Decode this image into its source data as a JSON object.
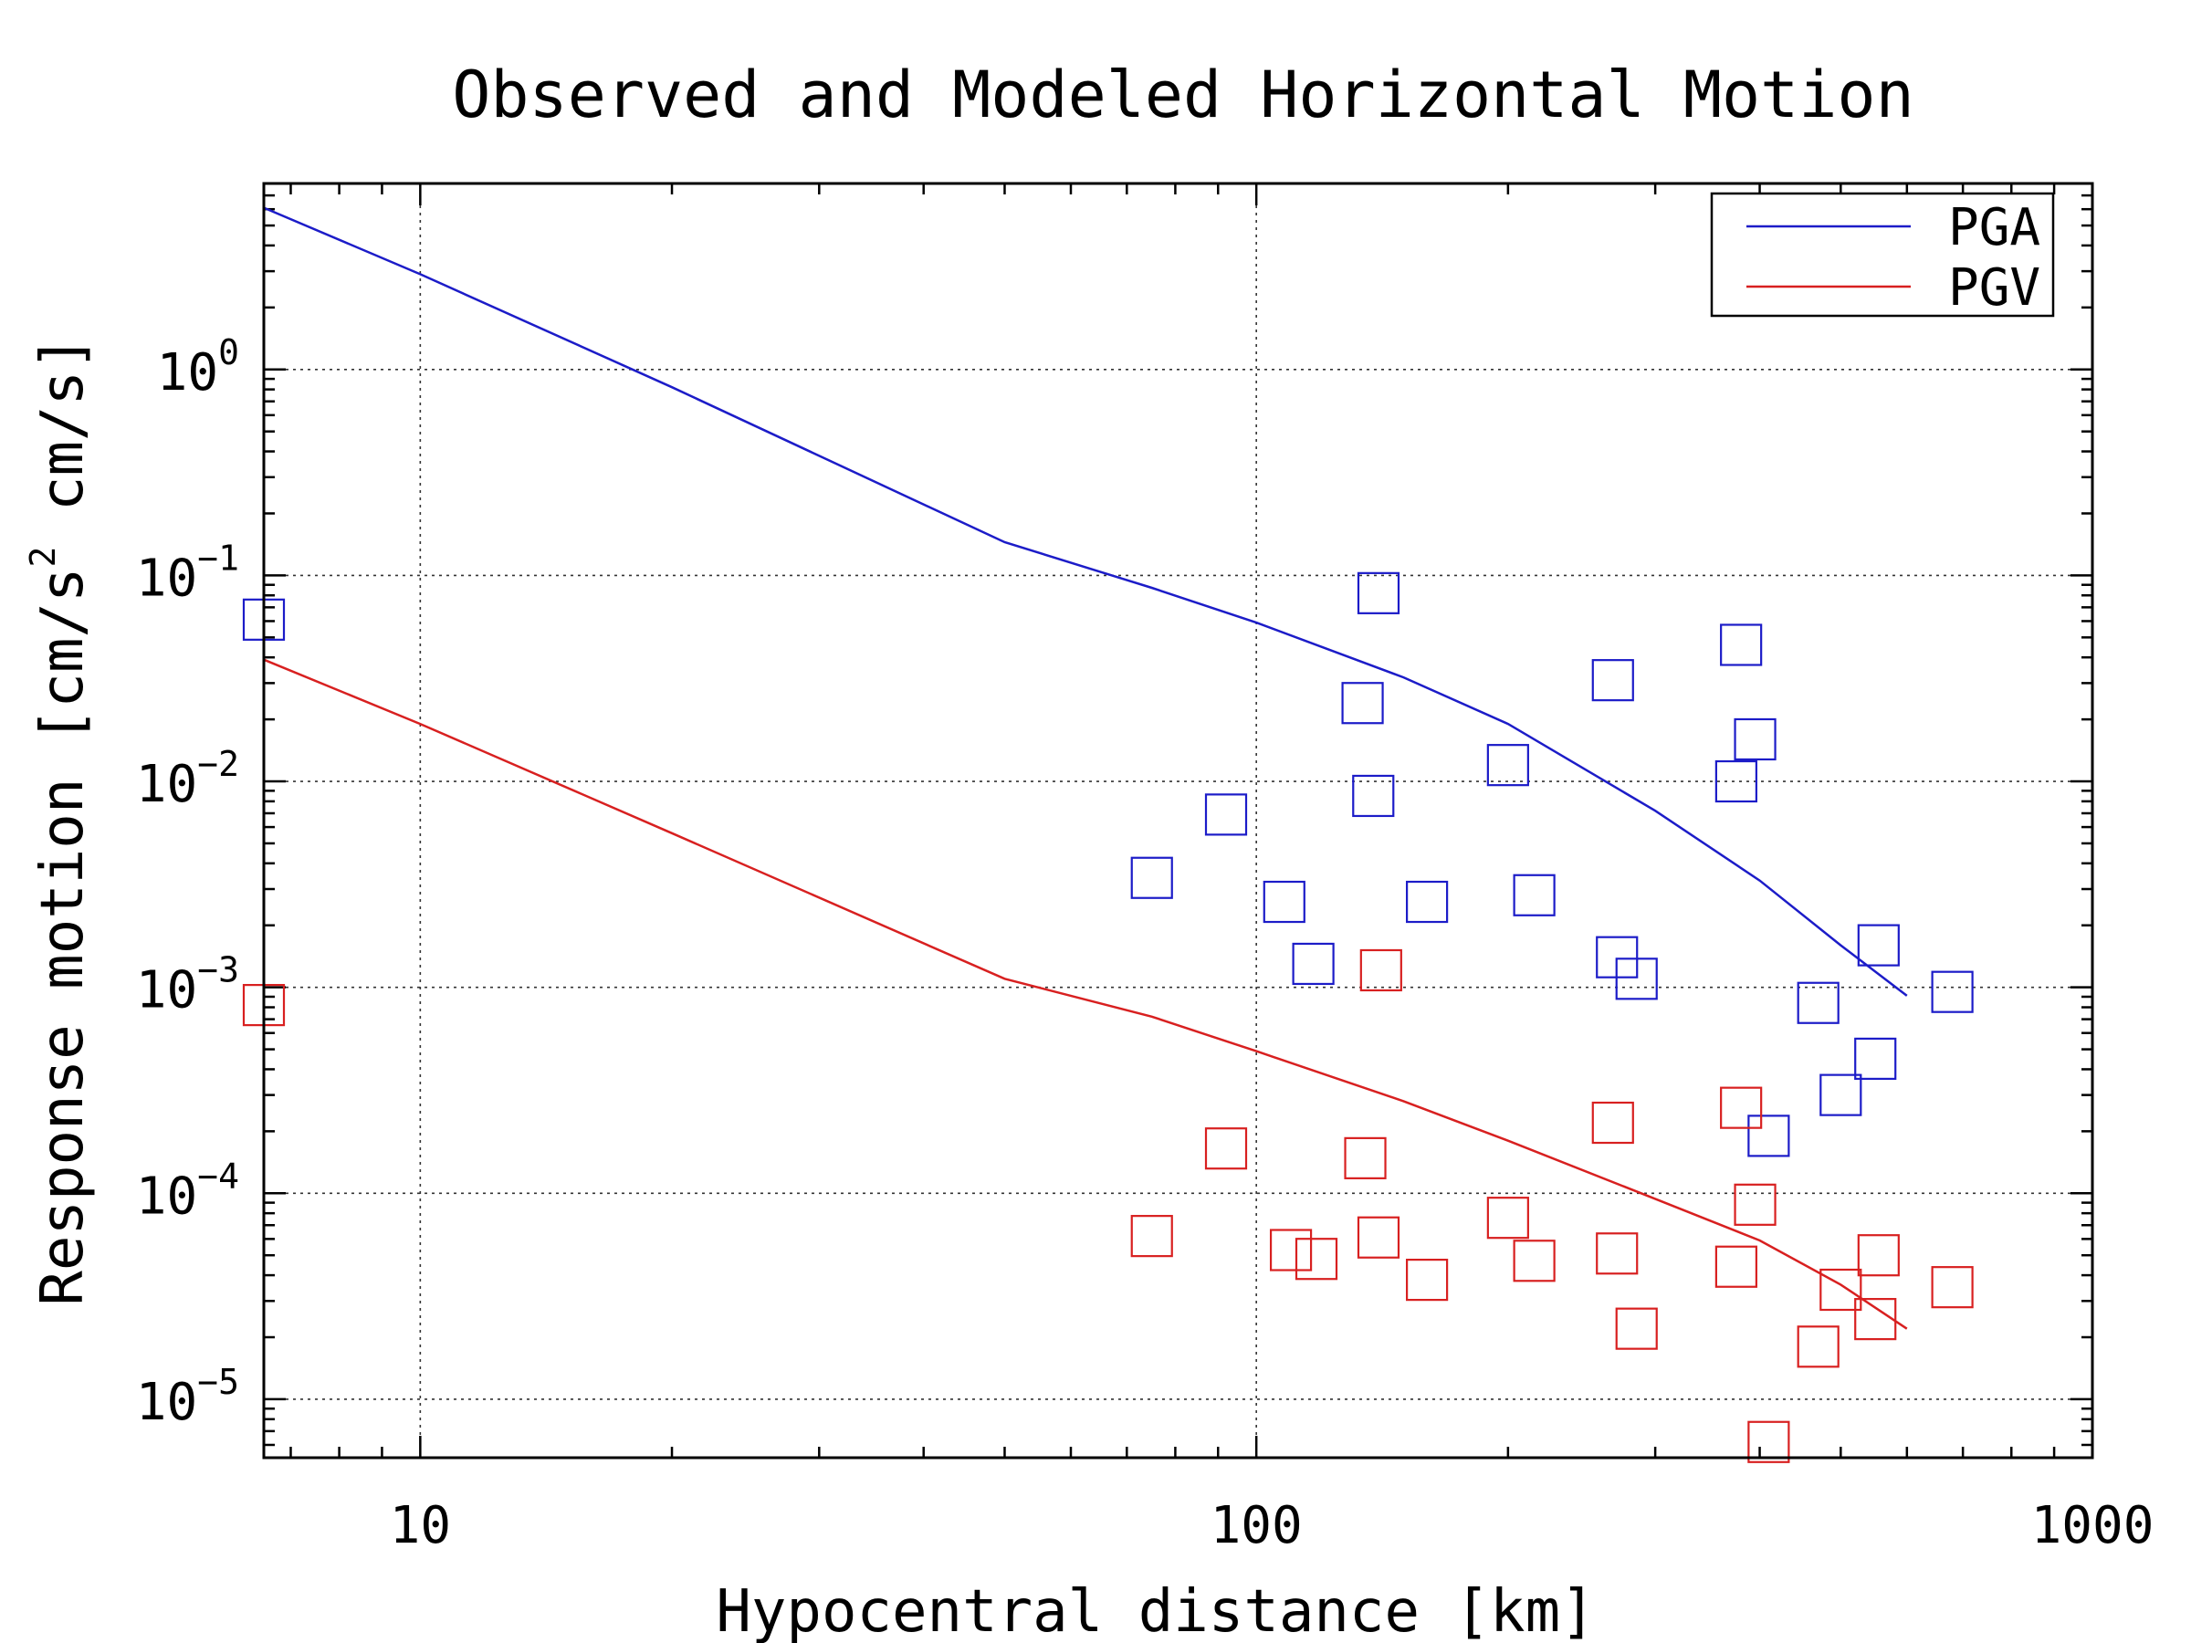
{
  "chart_data": {
    "type": "scatter",
    "title": "Observed and Modeled Horizontal Motion",
    "xlabel": "Hypocentral distance [km]",
    "ylabel_parts": [
      "Response motion  [cm/s",
      "2",
      "  cm/s]"
    ],
    "x_scale": "log",
    "y_scale": "log",
    "xlim": [
      6.5,
      1000
    ],
    "ylim": [
      5.2e-06,
      8
    ],
    "grid": true,
    "legend_placement": "top-right",
    "x_ticks": [
      {
        "value": 10,
        "label": "10"
      },
      {
        "value": 100,
        "label": "100"
      },
      {
        "value": 1000,
        "label": "1000"
      }
    ],
    "y_ticks": [
      {
        "value": 1,
        "base": "10",
        "exp": "0"
      },
      {
        "value": 0.1,
        "base": "10",
        "exp": "−1"
      },
      {
        "value": 0.01,
        "base": "10",
        "exp": "−2"
      },
      {
        "value": 0.001,
        "base": "10",
        "exp": "−3"
      },
      {
        "value": 0.0001,
        "base": "10",
        "exp": "−4"
      },
      {
        "value": 1e-05,
        "base": "10",
        "exp": "−5"
      }
    ],
    "series": [
      {
        "name": "PGA",
        "color": "#1c1cc8",
        "line": [
          [
            6.5,
            6.1
          ],
          [
            10,
            2.9
          ],
          [
            20,
            0.82
          ],
          [
            50,
            0.145
          ],
          [
            75,
            0.087
          ],
          [
            100,
            0.059
          ],
          [
            150,
            0.032
          ],
          [
            200,
            0.019
          ],
          [
            300,
            0.0072
          ],
          [
            400,
            0.0033
          ],
          [
            500,
            0.0016
          ],
          [
            600,
            0.00091
          ]
        ],
        "points": [
          [
            6.5,
            0.061
          ],
          [
            75,
            0.0034
          ],
          [
            92,
            0.0069
          ],
          [
            108,
            0.0026
          ],
          [
            117,
            0.0013
          ],
          [
            134,
            0.024
          ],
          [
            138,
            0.0085
          ],
          [
            140,
            0.082
          ],
          [
            160,
            0.0026
          ],
          [
            200,
            0.012
          ],
          [
            215,
            0.0028
          ],
          [
            267,
            0.031
          ],
          [
            270,
            0.0014
          ],
          [
            285,
            0.0011
          ],
          [
            375,
            0.01
          ],
          [
            380,
            0.046
          ],
          [
            395,
            0.016
          ],
          [
            410,
            0.00019
          ],
          [
            470,
            0.00084
          ],
          [
            500,
            0.0003
          ],
          [
            550,
            0.00045
          ],
          [
            555,
            0.0016
          ],
          [
            680,
            0.00095
          ]
        ]
      },
      {
        "name": "PGV",
        "color": "#d82020",
        "line": [
          [
            6.5,
            0.039
          ],
          [
            10,
            0.019
          ],
          [
            20,
            0.0056
          ],
          [
            50,
            0.0011
          ],
          [
            75,
            0.00072
          ],
          [
            100,
            0.00049
          ],
          [
            150,
            0.00028
          ],
          [
            200,
            0.00018
          ],
          [
            300,
            9.4e-05
          ],
          [
            400,
            5.9e-05
          ],
          [
            500,
            3.6e-05
          ],
          [
            600,
            2.2e-05
          ]
        ],
        "points": [
          [
            6.5,
            0.00082
          ],
          [
            75,
            6.2e-05
          ],
          [
            92,
            0.000165
          ],
          [
            110,
            5.3e-05
          ],
          [
            118,
            4.8e-05
          ],
          [
            135,
            0.000148
          ],
          [
            140,
            6.1e-05
          ],
          [
            141,
            0.00121
          ],
          [
            160,
            3.8e-05
          ],
          [
            200,
            7.6e-05
          ],
          [
            215,
            4.7e-05
          ],
          [
            267,
            0.00022
          ],
          [
            270,
            5.1e-05
          ],
          [
            285,
            2.2e-05
          ],
          [
            375,
            4.4e-05
          ],
          [
            380,
            0.00026
          ],
          [
            395,
            8.8e-05
          ],
          [
            410,
            6.2e-06
          ],
          [
            470,
            1.8e-05
          ],
          [
            500,
            3.4e-05
          ],
          [
            550,
            2.45e-05
          ],
          [
            555,
            5e-05
          ],
          [
            680,
            3.5e-05
          ]
        ]
      }
    ]
  }
}
